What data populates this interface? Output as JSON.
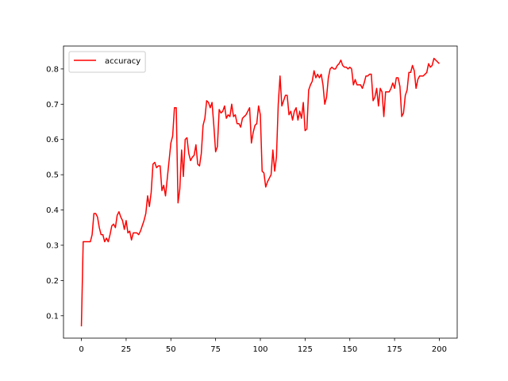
{
  "chart_data": {
    "type": "line",
    "x": [
      0,
      1,
      2,
      3,
      4,
      5,
      6,
      7,
      8,
      9,
      10,
      11,
      12,
      13,
      14,
      15,
      16,
      17,
      18,
      19,
      20,
      21,
      22,
      23,
      24,
      25,
      26,
      27,
      28,
      29,
      30,
      31,
      32,
      33,
      34,
      35,
      36,
      37,
      38,
      39,
      40,
      41,
      42,
      43,
      44,
      45,
      46,
      47,
      48,
      49,
      50,
      51,
      52,
      53,
      54,
      55,
      56,
      57,
      58,
      59,
      60,
      61,
      62,
      63,
      64,
      65,
      66,
      67,
      68,
      69,
      70,
      71,
      72,
      73,
      74,
      75,
      76,
      77,
      78,
      79,
      80,
      81,
      82,
      83,
      84,
      85,
      86,
      87,
      88,
      89,
      90,
      91,
      92,
      93,
      94,
      95,
      96,
      97,
      98,
      99,
      100,
      101,
      102,
      103,
      104,
      105,
      106,
      107,
      108,
      109,
      110,
      111,
      112,
      113,
      114,
      115,
      116,
      117,
      118,
      119,
      120,
      121,
      122,
      123,
      124,
      125,
      126,
      127,
      128,
      129,
      130,
      131,
      132,
      133,
      134,
      135,
      136,
      137,
      138,
      139,
      140,
      141,
      142,
      143,
      144,
      145,
      146,
      147,
      148,
      149,
      150,
      151,
      152,
      153,
      154,
      155,
      156,
      157,
      158,
      159,
      160,
      161,
      162,
      163,
      164,
      165,
      166,
      167,
      168,
      169,
      170,
      171,
      172,
      173,
      174,
      175,
      176,
      177,
      178,
      179,
      180,
      181,
      182,
      183,
      184,
      185,
      186,
      187,
      188,
      189,
      190,
      191,
      192,
      193,
      194,
      195,
      196,
      197,
      198,
      199,
      200
    ],
    "series": [
      {
        "name": "accuracy",
        "color": "#ff0000",
        "values": [
          0.07,
          0.31,
          0.31,
          0.31,
          0.31,
          0.31,
          0.33,
          0.39,
          0.39,
          0.38,
          0.35,
          0.33,
          0.33,
          0.31,
          0.32,
          0.31,
          0.33,
          0.355,
          0.36,
          0.35,
          0.385,
          0.395,
          0.38,
          0.37,
          0.345,
          0.37,
          0.335,
          0.34,
          0.315,
          0.335,
          0.335,
          0.335,
          0.33,
          0.34,
          0.355,
          0.37,
          0.39,
          0.44,
          0.41,
          0.45,
          0.53,
          0.535,
          0.52,
          0.525,
          0.525,
          0.455,
          0.47,
          0.44,
          0.49,
          0.54,
          0.59,
          0.61,
          0.69,
          0.69,
          0.42,
          0.46,
          0.57,
          0.495,
          0.6,
          0.605,
          0.56,
          0.54,
          0.55,
          0.555,
          0.585,
          0.53,
          0.525,
          0.56,
          0.64,
          0.66,
          0.71,
          0.705,
          0.69,
          0.705,
          0.64,
          0.565,
          0.58,
          0.685,
          0.675,
          0.68,
          0.695,
          0.66,
          0.67,
          0.665,
          0.7,
          0.665,
          0.67,
          0.645,
          0.645,
          0.635,
          0.66,
          0.665,
          0.67,
          0.68,
          0.69,
          0.59,
          0.62,
          0.64,
          0.645,
          0.695,
          0.67,
          0.51,
          0.505,
          0.465,
          0.48,
          0.49,
          0.5,
          0.57,
          0.51,
          0.55,
          0.7,
          0.78,
          0.695,
          0.71,
          0.725,
          0.725,
          0.67,
          0.68,
          0.655,
          0.68,
          0.69,
          0.655,
          0.68,
          0.66,
          0.705,
          0.625,
          0.63,
          0.74,
          0.755,
          0.765,
          0.795,
          0.775,
          0.785,
          0.775,
          0.785,
          0.755,
          0.7,
          0.72,
          0.775,
          0.8,
          0.805,
          0.8,
          0.8,
          0.81,
          0.815,
          0.825,
          0.81,
          0.805,
          0.805,
          0.8,
          0.805,
          0.8,
          0.755,
          0.77,
          0.755,
          0.755,
          0.755,
          0.745,
          0.76,
          0.78,
          0.78,
          0.785,
          0.785,
          0.71,
          0.72,
          0.745,
          0.695,
          0.745,
          0.735,
          0.665,
          0.735,
          0.735,
          0.735,
          0.745,
          0.76,
          0.745,
          0.775,
          0.775,
          0.75,
          0.665,
          0.675,
          0.725,
          0.74,
          0.79,
          0.79,
          0.81,
          0.795,
          0.745,
          0.77,
          0.78,
          0.78,
          0.78,
          0.785,
          0.79,
          0.815,
          0.805,
          0.81,
          0.83,
          0.825,
          0.82,
          0.815
        ]
      }
    ],
    "xlim": [
      -10,
      210
    ],
    "ylim": [
      0.0365,
      0.865
    ],
    "xticks": [
      0,
      25,
      50,
      75,
      100,
      125,
      150,
      175,
      200
    ],
    "yticks": [
      0.1,
      0.2,
      0.3,
      0.4,
      0.5,
      0.6,
      0.7,
      0.8
    ],
    "legend": "upper left"
  }
}
